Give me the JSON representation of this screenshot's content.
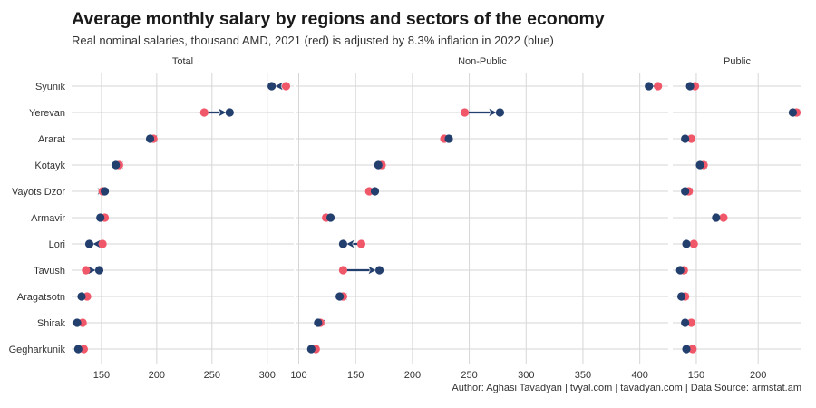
{
  "title": "Average monthly salary by regions and sectors of the economy",
  "subtitle": "Real nominal salaries, thousand AMD, 2021 (red) is adjusted by 8.3% inflation in 2022 (blue)",
  "caption": "Author: Aghasi Tavadyan   |   tvyal.com   |   tavadyan.com   |   Data Source: armstat.am",
  "colors": {
    "year_2021": "#f0586a",
    "year_2022": "#233f6e",
    "grid": "#d6d6d6"
  },
  "chart_data": {
    "type": "dumbbell",
    "regions": [
      "Syunik",
      "Yerevan",
      "Ararat",
      "Kotayk",
      "Vayots Dzor",
      "Armavir",
      "Lori",
      "Tavush",
      "Aragatsotn",
      "Shirak",
      "Gegharkunik"
    ],
    "series_meaning": {
      "start": "2021",
      "end": "2022"
    },
    "panels": [
      {
        "name": "Total",
        "xlim": [
          123,
          324
        ],
        "xticks": [
          150,
          200,
          250,
          300
        ],
        "start": [
          317,
          243,
          197,
          166,
          151,
          153,
          151,
          136,
          137,
          133,
          134
        ],
        "end": [
          304,
          266,
          194,
          163,
          153,
          149,
          139,
          148,
          132,
          128,
          129
        ]
      },
      {
        "name": "Non-Public",
        "xlim": [
          98,
          425
        ],
        "xticks": [
          100,
          150,
          200,
          250,
          300,
          350,
          400
        ],
        "start": [
          416,
          246,
          228,
          173,
          162,
          124,
          155,
          139,
          139,
          119,
          115
        ],
        "end": [
          408,
          277,
          232,
          170,
          167,
          128,
          139,
          171,
          136,
          117,
          111
        ]
      },
      {
        "name": "Public",
        "xlim": [
          131,
          235
        ],
        "xticks": [
          150,
          200
        ],
        "start": [
          149,
          231,
          146,
          156,
          144,
          172,
          148,
          140,
          141,
          146,
          147
        ],
        "end": [
          145,
          228,
          141,
          153,
          141,
          166,
          142,
          137,
          138,
          141,
          142
        ]
      }
    ]
  }
}
